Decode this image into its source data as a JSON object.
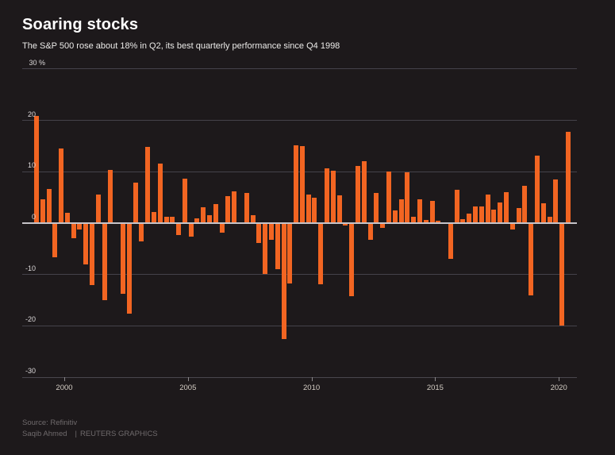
{
  "header": {
    "title": "Soaring stocks",
    "subtitle": "The S&P 500 rose about 18% in Q2, its best quarterly performance since Q4 1998"
  },
  "footer": {
    "source": "Source: Refinitiv",
    "byline": "Saqib Ahmed",
    "separator": "|",
    "brand": "REUTERS GRAPHICS"
  },
  "colors": {
    "background": "#1d191b",
    "bar": "#f26522",
    "grid": "#45424a",
    "zero_line": "#c6c3c8",
    "title_text": "#ffffff",
    "subtitle_text": "#ecebe9",
    "axis_label_text": "#dcd9da",
    "year_label_text": "#d4cdc4",
    "footer_text": "#6f6a6c"
  },
  "chart_data": {
    "type": "bar",
    "title": "Soaring stocks",
    "subtitle": "The S&P 500 rose about 18% in Q2, its best quarterly performance since Q4 1998",
    "unit": "%",
    "y_top_label": "30 %",
    "ylim": [
      -30,
      30
    ],
    "yticks": [
      30,
      20,
      10,
      0,
      -10,
      -20,
      -30
    ],
    "xticks": [
      2000,
      2005,
      2010,
      2015,
      2020
    ],
    "grid": true,
    "legend": "none",
    "x_start": "1998 Q4",
    "x_end": "2020 Q2",
    "categories": [
      "1998 Q4",
      "1999 Q1",
      "1999 Q2",
      "1999 Q3",
      "1999 Q4",
      "2000 Q1",
      "2000 Q2",
      "2000 Q3",
      "2000 Q4",
      "2001 Q1",
      "2001 Q2",
      "2001 Q3",
      "2001 Q4",
      "2002 Q1",
      "2002 Q2",
      "2002 Q3",
      "2002 Q4",
      "2003 Q1",
      "2003 Q2",
      "2003 Q3",
      "2003 Q4",
      "2004 Q1",
      "2004 Q2",
      "2004 Q3",
      "2004 Q4",
      "2005 Q1",
      "2005 Q2",
      "2005 Q3",
      "2005 Q4",
      "2006 Q1",
      "2006 Q2",
      "2006 Q3",
      "2006 Q4",
      "2007 Q1",
      "2007 Q2",
      "2007 Q3",
      "2007 Q4",
      "2008 Q1",
      "2008 Q2",
      "2008 Q3",
      "2008 Q4",
      "2009 Q1",
      "2009 Q2",
      "2009 Q3",
      "2009 Q4",
      "2010 Q1",
      "2010 Q2",
      "2010 Q3",
      "2010 Q4",
      "2011 Q1",
      "2011 Q2",
      "2011 Q3",
      "2011 Q4",
      "2012 Q1",
      "2012 Q2",
      "2012 Q3",
      "2012 Q4",
      "2013 Q1",
      "2013 Q2",
      "2013 Q3",
      "2013 Q4",
      "2014 Q1",
      "2014 Q2",
      "2014 Q3",
      "2014 Q4",
      "2015 Q1",
      "2015 Q2",
      "2015 Q3",
      "2015 Q4",
      "2016 Q1",
      "2016 Q2",
      "2016 Q3",
      "2016 Q4",
      "2017 Q1",
      "2017 Q2",
      "2017 Q3",
      "2017 Q4",
      "2018 Q1",
      "2018 Q2",
      "2018 Q3",
      "2018 Q4",
      "2019 Q1",
      "2019 Q2",
      "2019 Q3",
      "2019 Q4",
      "2020 Q1",
      "2020 Q2"
    ],
    "values": [
      20.9,
      4.6,
      6.7,
      -6.6,
      14.5,
      2.0,
      -2.9,
      -1.2,
      -8.1,
      -12.1,
      5.5,
      -15.0,
      10.3,
      -0.1,
      -13.7,
      -17.6,
      7.9,
      -3.6,
      14.9,
      2.2,
      11.6,
      1.3,
      1.3,
      -2.3,
      8.7,
      -2.6,
      0.9,
      3.1,
      1.6,
      3.7,
      -1.9,
      5.2,
      6.2,
      0.2,
      5.8,
      1.6,
      -3.8,
      -9.9,
      -3.2,
      -9.0,
      -22.6,
      -11.7,
      15.2,
      15.0,
      5.5,
      4.9,
      -11.9,
      10.7,
      10.2,
      5.4,
      -0.4,
      -14.3,
      11.2,
      12.0,
      -3.3,
      5.8,
      -1.0,
      10.0,
      2.4,
      4.7,
      9.9,
      1.3,
      4.7,
      0.6,
      4.4,
      0.4,
      -0.2,
      -6.9,
      6.5,
      0.8,
      1.9,
      3.3,
      3.3,
      5.5,
      2.6,
      4.0,
      6.1,
      -1.2,
      2.9,
      7.2,
      -14.0,
      13.1,
      3.8,
      1.2,
      8.5,
      -20.0,
      17.8
    ]
  }
}
